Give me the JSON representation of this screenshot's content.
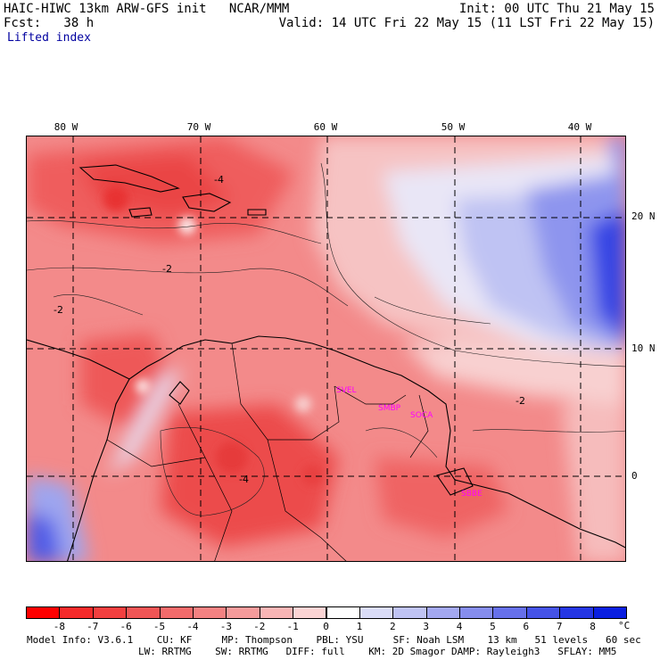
{
  "header": {
    "line1_left": "HAIC-HIWC 13km ARW-GFS init   NCAR/MMM",
    "line1_right": "Init: 00 UTC Thu 21 May 15",
    "line2_left": "Fcst:   38 h",
    "line2_right": "Valid: 14 UTC Fri 22 May 15 (11 LST Fri 22 May 15)",
    "field": "Lifted index"
  },
  "map": {
    "lon_labels": [
      "80 W",
      "70 W",
      "60 W",
      "50 W",
      "40 W"
    ],
    "lat_labels": [
      "20 N",
      "10 N",
      "0"
    ],
    "contour_labels": [
      "-4",
      "-2",
      "-2",
      "-2",
      "-4"
    ],
    "stations": [
      "SVEL",
      "SMBP",
      "SOCA",
      "SBBE"
    ],
    "colors": {
      "neg_dark": "#ff2020",
      "neg_mid": "#f26d6d",
      "neg_light": "#f7b3b3",
      "pos_light": "#d9ddfa",
      "pos_mid": "#8f98ef",
      "pos_dark": "#2b3ae6"
    }
  },
  "colorbar": {
    "ticks": [
      "-8",
      "-7",
      "-6",
      "-5",
      "-4",
      "-3",
      "-2",
      "-1",
      "0",
      "1",
      "2",
      "3",
      "4",
      "5",
      "6",
      "7",
      "8"
    ],
    "unit": "°C",
    "colors": [
      "#ff0000",
      "#f52a2a",
      "#f23f3f",
      "#f05555",
      "#f26b6b",
      "#f38282",
      "#f59b9b",
      "#f8b5b5",
      "#fbd4d4",
      "#ffffff",
      "#dadcf7",
      "#bfc3f3",
      "#a3a8f0",
      "#868ded",
      "#6670ea",
      "#4553e6",
      "#2536e3",
      "#0a1fe0"
    ]
  },
  "footer": {
    "line1": "Model Info: V3.6.1    CU: KF     MP: Thompson    PBL: YSU     SF: Noah LSM    13 km   51 levels   60 sec",
    "line2": "LW: RRTMG    SW: RRTMG   DIFF: full    KM: 2D Smagor DAMP: Rayleigh3   SFLAY: MM5"
  }
}
